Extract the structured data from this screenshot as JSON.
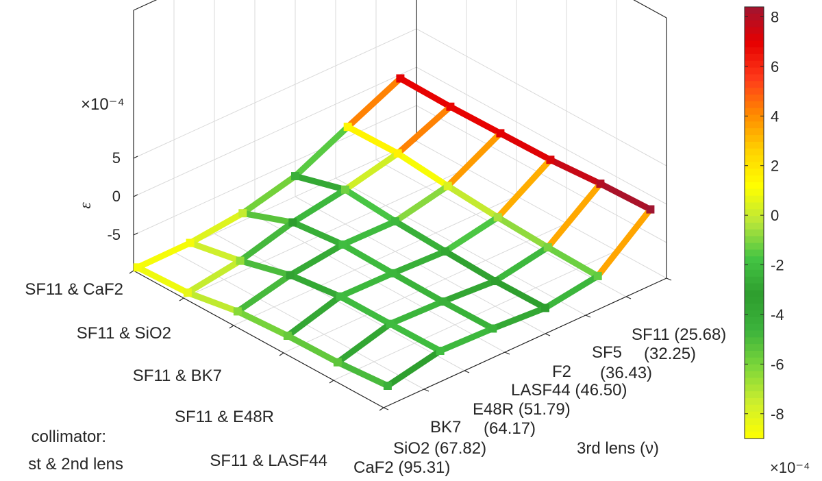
{
  "chart_data": {
    "type": "surface-mesh",
    "title": "",
    "zlabel": "ε",
    "z_exponent_label": "×10⁻⁴",
    "z_ticks": [
      "5",
      "0",
      "-5"
    ],
    "x_axis_label_lines": [
      "collimator:",
      "st & 2nd lens"
    ],
    "x_categories": [
      "SF11 & CaF2",
      "SF11 & SiO2",
      "SF11 & BK7",
      "SF11 & E48R",
      "SF11 & LASF44"
    ],
    "y_axis_label": "3rd lens (ν)",
    "y_categories": [
      "CaF2 (95.31)",
      "SiO2 (67.82)",
      "BK7",
      "(64.17)",
      "E48R (51.79)",
      "LASF44 (46.50)",
      "F2",
      "(36.43)",
      "SF5",
      "(32.25)",
      "SF11 (25.68)"
    ],
    "grid": true,
    "colorbar": {
      "ticks": [
        "8",
        "6",
        "4",
        "2",
        "0",
        "-2",
        "-4",
        "-6",
        "-8"
      ],
      "tick_values": [
        8,
        6,
        4,
        2,
        0,
        -2,
        -4,
        -6,
        -8
      ],
      "range": [
        -9,
        8.4
      ],
      "exponent_label": "×10⁻⁴",
      "colormap": [
        "#ffff00",
        "#cdee2e",
        "#7cd63a",
        "#3cb33c",
        "#2e9e2e",
        "#44c444",
        "#b8e63a",
        "#ffff00",
        "#ffd200",
        "#ff8a00",
        "#ff3b1a",
        "#e60000",
        "#a01530"
      ]
    },
    "values_e4": [
      [
        -8.8,
        -8.7,
        -7.4,
        -4.4,
        1.4,
        7.0
      ],
      [
        -8.3,
        -6.5,
        -3.2,
        -1.2,
        1.6,
        6.8
      ],
      [
        -6.3,
        -3.5,
        -2.0,
        -2.2,
        0.4,
        7.0
      ],
      [
        -5.6,
        -2.1,
        -2.3,
        -2.8,
        -0.5,
        7.2
      ],
      [
        -5.4,
        -2.1,
        -2.5,
        -3.3,
        -1.1,
        8.0
      ],
      [
        -4.5,
        -2.0,
        -2.4,
        -3.2,
        -1.4,
        8.4
      ]
    ]
  }
}
